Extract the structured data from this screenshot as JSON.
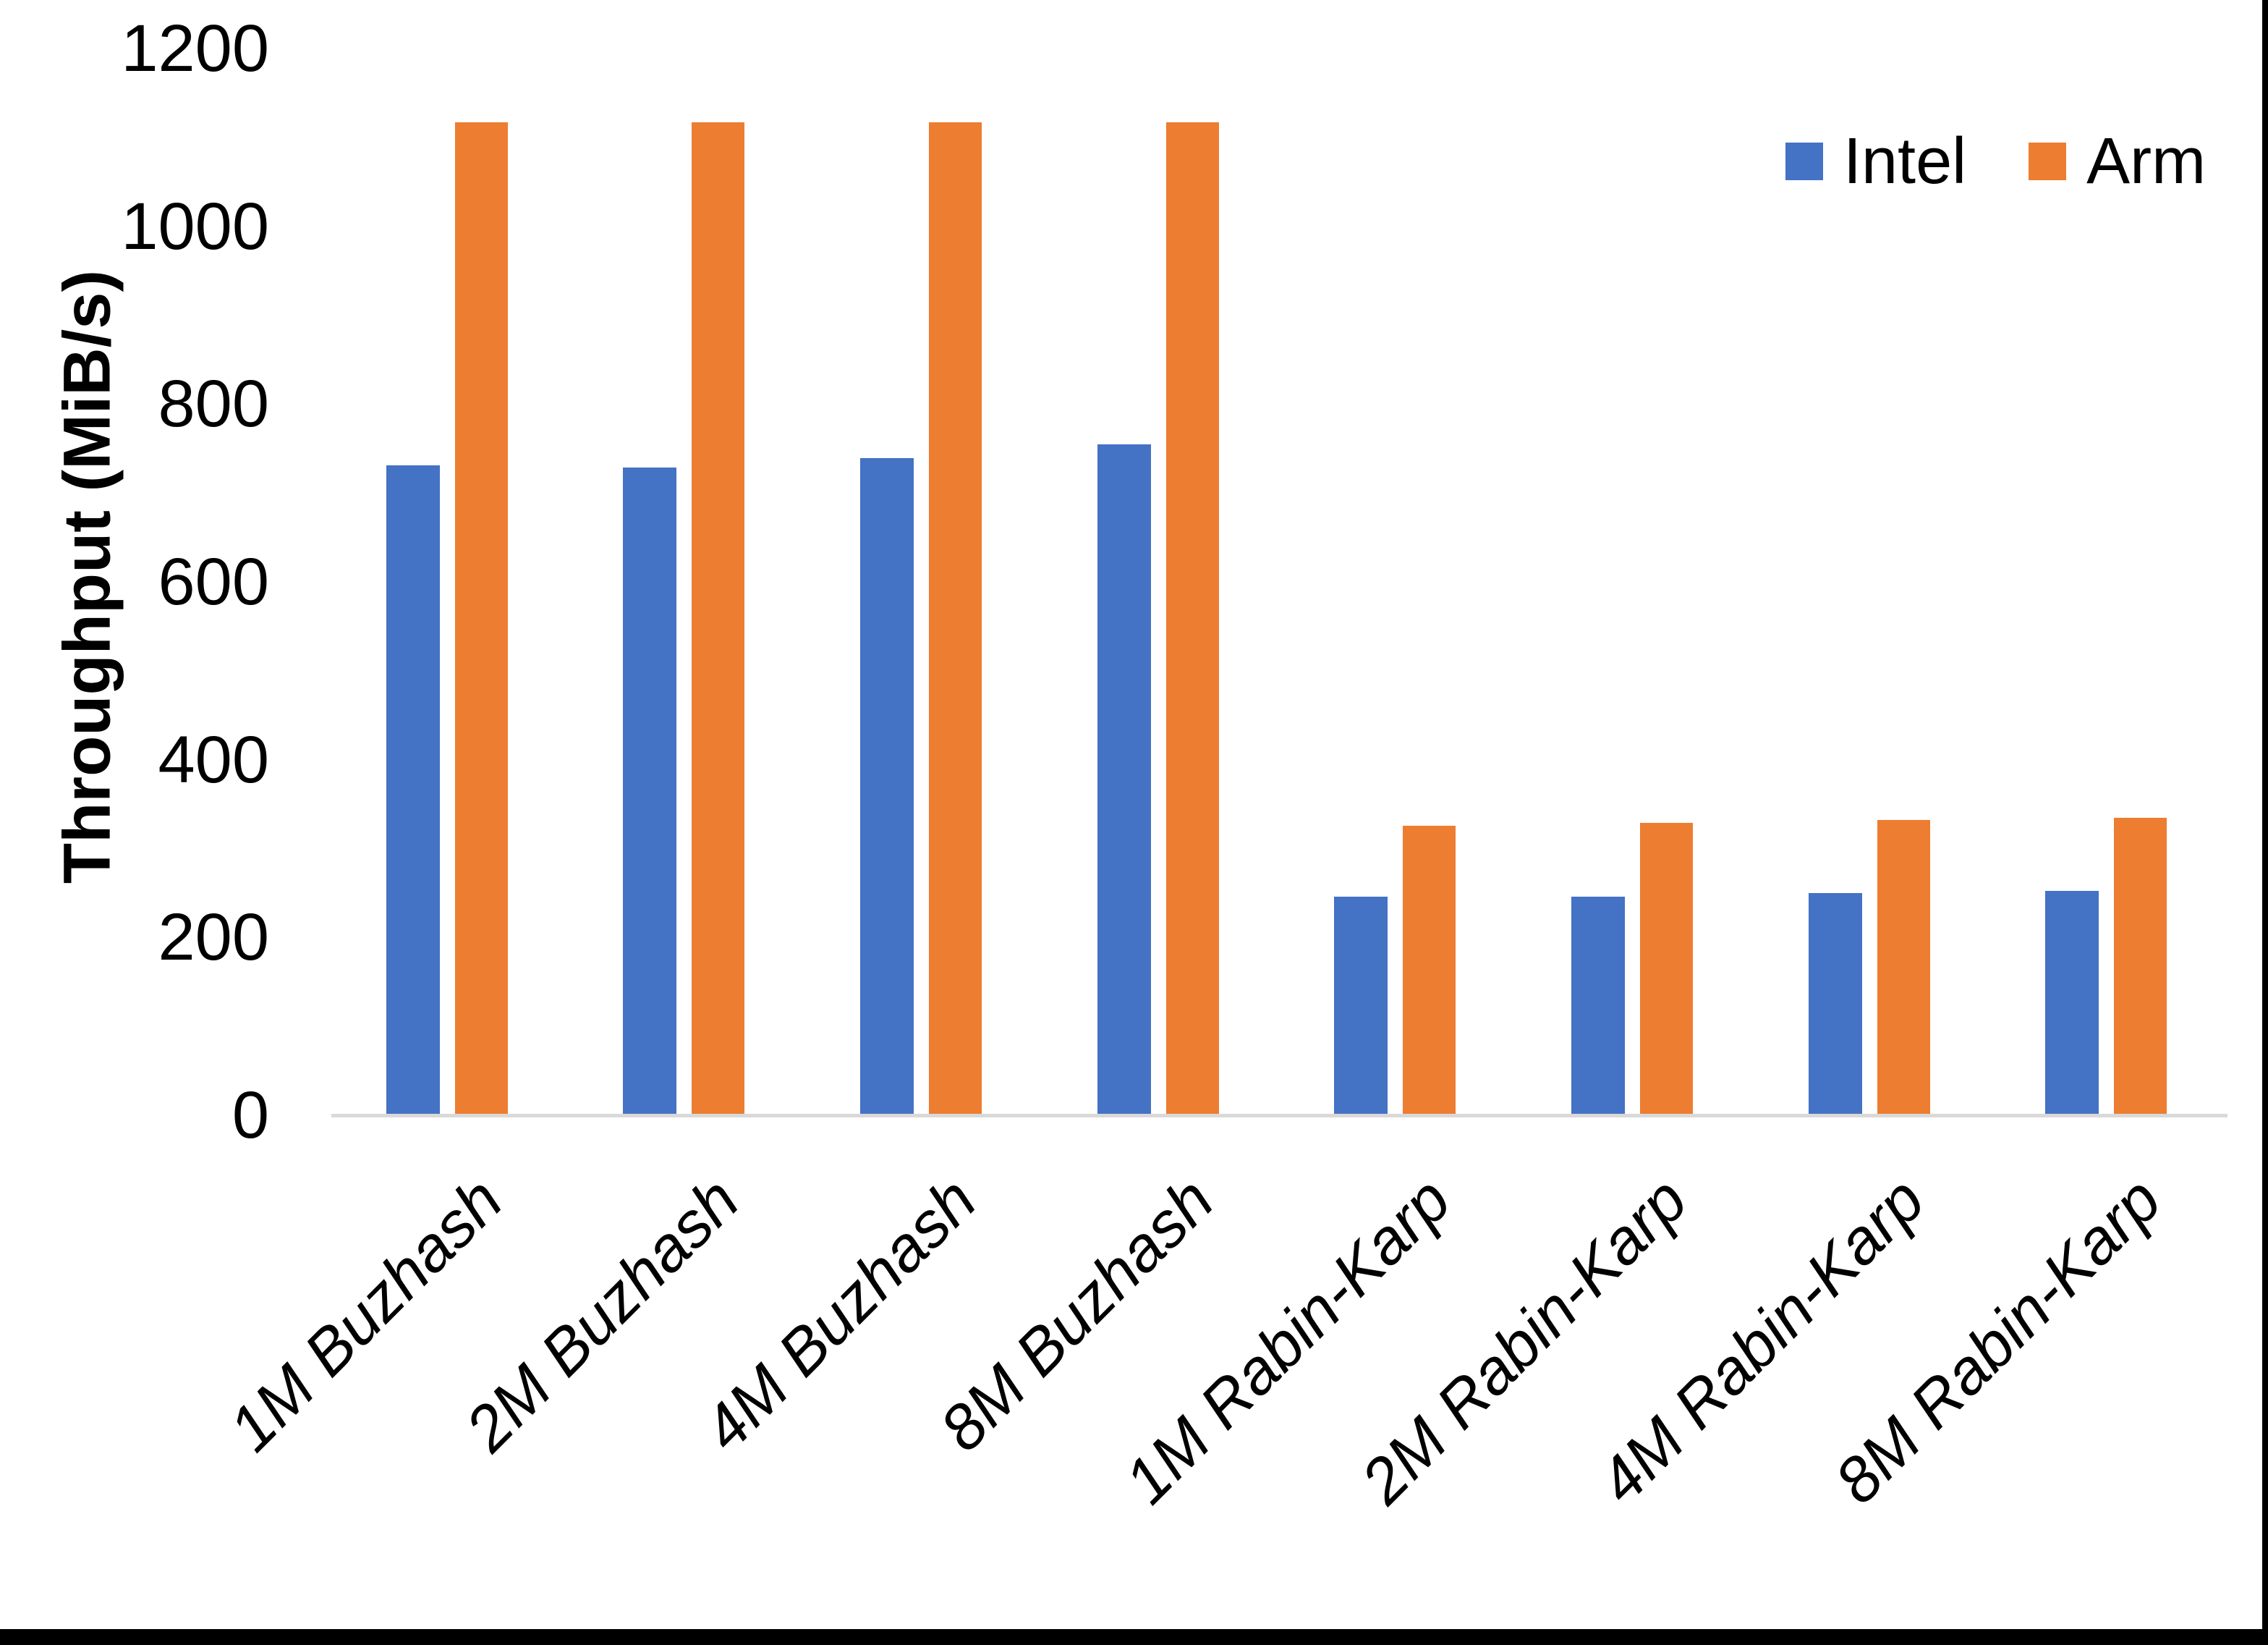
{
  "chart_data": {
    "type": "bar",
    "title": "",
    "ylabel": "Throughput (MiB/s)",
    "xlabel": "",
    "categories": [
      "1M Buzhash",
      "2M Buzhash",
      "4M Buzhash",
      "8M Buzhash",
      "1M Rabin-Karp",
      "2M Rabin-Karp",
      "4M Rabin-Karp",
      "8M Rabin-Karp"
    ],
    "series": [
      {
        "name": "Intel",
        "color": "#4472C4",
        "values": [
          731,
          729,
          739,
          755,
          246,
          246,
          250,
          252
        ]
      },
      {
        "name": "Arm",
        "color": "#ED7D31",
        "values": [
          1117,
          1117,
          1117,
          1117,
          326,
          329,
          332,
          335
        ]
      }
    ],
    "ylim": [
      0,
      1200
    ],
    "y_ticks": [
      0,
      200,
      400,
      600,
      800,
      1000,
      1200
    ],
    "grid": false,
    "legend_position": "top-right",
    "axis_line_color": "#D9D9D9",
    "text_color": "#000000",
    "background_color": "#FFFFFF"
  }
}
